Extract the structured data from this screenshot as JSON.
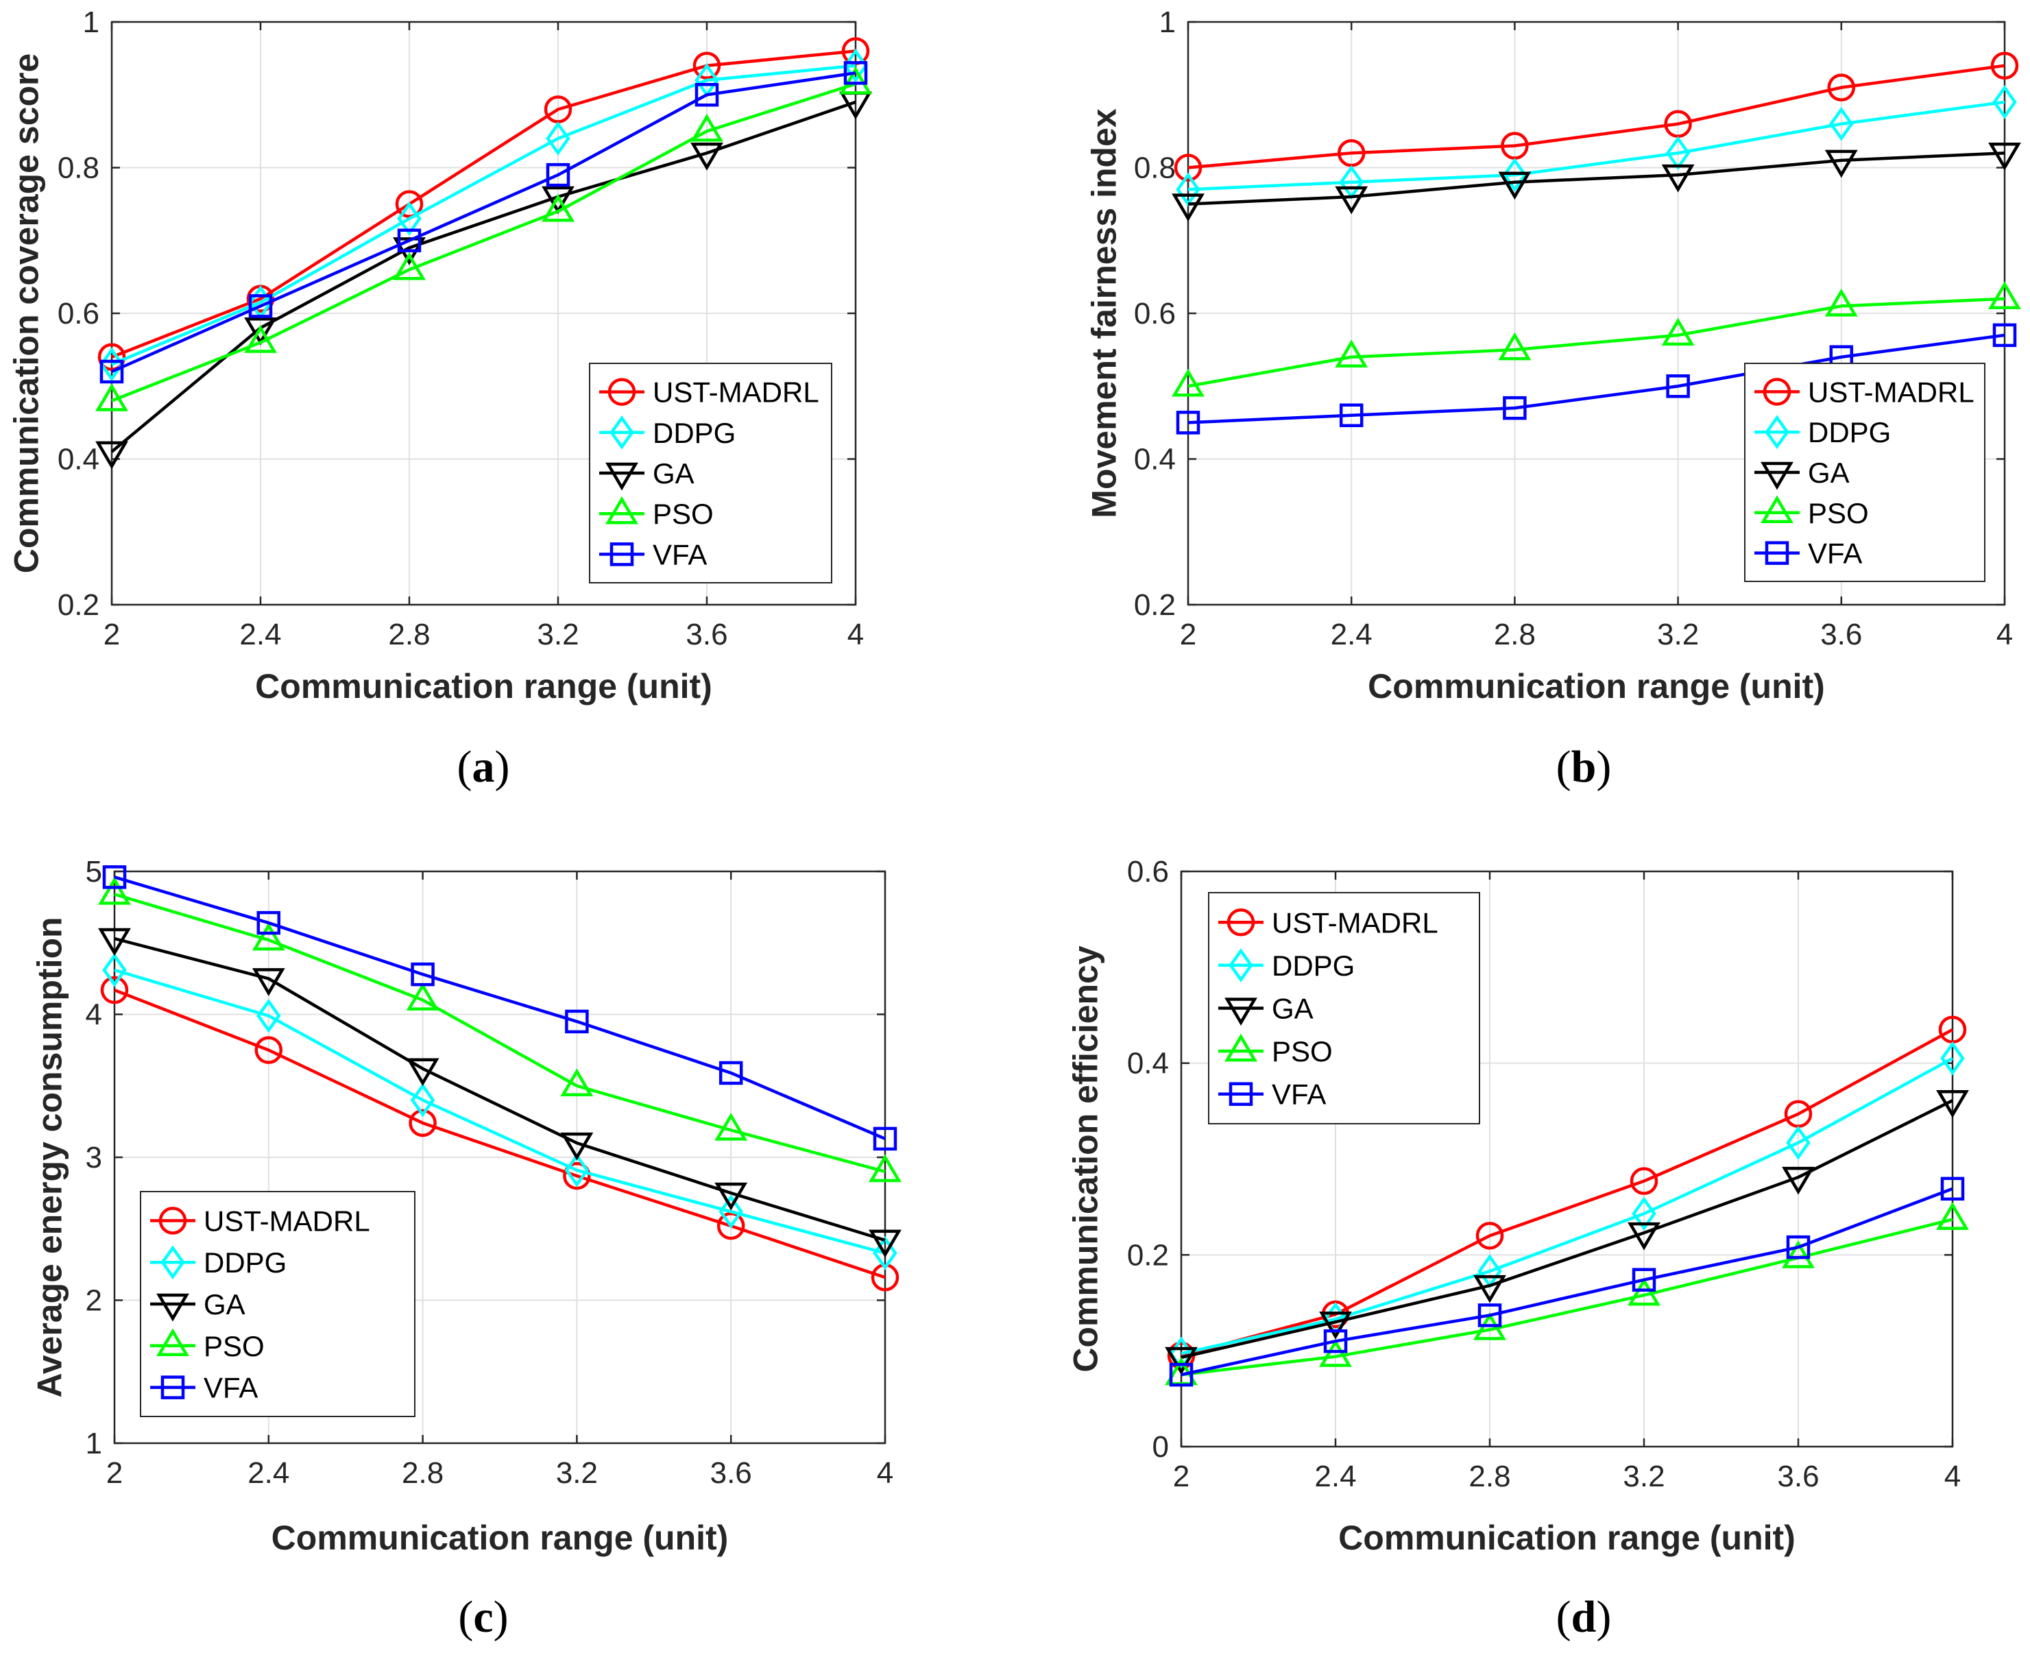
{
  "colors": {
    "UST-MADRL": "#ff0000",
    "DDPG": "#00ffff",
    "GA": "#000000",
    "PSO": "#00ff00",
    "VFA": "#0000ff"
  },
  "chart_data": [
    {
      "type": "line",
      "panel": "a",
      "caption": {
        "open": "(",
        "letter": "a",
        "close": ")"
      },
      "xlabel": "Communication range (unit)",
      "ylabel": "Communication coverage score",
      "x": [
        2,
        2.4,
        2.8,
        3.2,
        3.6,
        4
      ],
      "xticks": [
        "2",
        "2.4",
        "2.8",
        "3.2",
        "3.6",
        "4"
      ],
      "xlim": [
        2,
        4
      ],
      "ylim": [
        0.2,
        1
      ],
      "yticks": [
        0.2,
        0.4,
        0.6,
        0.8,
        1
      ],
      "ytick_labels": [
        "0.2",
        "0.4",
        "0.6",
        "0.8",
        "1"
      ],
      "grid": true,
      "legend_position": "bottom-right",
      "series": [
        {
          "name": "UST-MADRL",
          "marker": "circle",
          "values": [
            0.54,
            0.62,
            0.75,
            0.88,
            0.94,
            0.96
          ]
        },
        {
          "name": "DDPG",
          "marker": "diamond",
          "values": [
            0.53,
            0.615,
            0.73,
            0.84,
            0.92,
            0.94
          ]
        },
        {
          "name": "GA",
          "marker": "triangle-down",
          "values": [
            0.41,
            0.58,
            0.69,
            0.76,
            0.82,
            0.89
          ]
        },
        {
          "name": "PSO",
          "marker": "triangle-up",
          "values": [
            0.48,
            0.56,
            0.66,
            0.74,
            0.85,
            0.915
          ]
        },
        {
          "name": "VFA",
          "marker": "square",
          "values": [
            0.52,
            0.61,
            0.7,
            0.79,
            0.9,
            0.93
          ]
        }
      ]
    },
    {
      "type": "line",
      "panel": "b",
      "caption": {
        "open": "(",
        "letter": "b",
        "close": ")"
      },
      "xlabel": "Communication range (unit)",
      "ylabel": "Movement fairness index",
      "x": [
        2,
        2.4,
        2.8,
        3.2,
        3.6,
        4
      ],
      "xticks": [
        "2",
        "2.4",
        "2.8",
        "3.2",
        "3.6",
        "4"
      ],
      "xlim": [
        2,
        4
      ],
      "ylim": [
        0.2,
        1
      ],
      "yticks": [
        0.2,
        0.4,
        0.6,
        0.8,
        1
      ],
      "ytick_labels": [
        "0.2",
        "0.4",
        "0.6",
        "0.8",
        "1"
      ],
      "grid": true,
      "legend_position": "bottom-right",
      "series": [
        {
          "name": "UST-MADRL",
          "marker": "circle",
          "values": [
            0.8,
            0.82,
            0.83,
            0.86,
            0.91,
            0.94
          ]
        },
        {
          "name": "DDPG",
          "marker": "diamond",
          "values": [
            0.77,
            0.78,
            0.79,
            0.82,
            0.86,
            0.89
          ]
        },
        {
          "name": "GA",
          "marker": "triangle-down",
          "values": [
            0.75,
            0.76,
            0.78,
            0.79,
            0.81,
            0.82
          ]
        },
        {
          "name": "PSO",
          "marker": "triangle-up",
          "values": [
            0.5,
            0.54,
            0.55,
            0.57,
            0.61,
            0.62
          ]
        },
        {
          "name": "VFA",
          "marker": "square",
          "values": [
            0.45,
            0.46,
            0.47,
            0.5,
            0.54,
            0.57
          ]
        }
      ]
    },
    {
      "type": "line",
      "panel": "c",
      "caption": {
        "open": "(",
        "letter": "c",
        "close": ")"
      },
      "xlabel": "Communication range (unit)",
      "ylabel": "Average energy consumption",
      "x": [
        2,
        2.4,
        2.8,
        3.2,
        3.6,
        4
      ],
      "xticks": [
        "2",
        "2.4",
        "2.8",
        "3.2",
        "3.6",
        "4"
      ],
      "xlim": [
        2,
        4
      ],
      "ylim": [
        1,
        5
      ],
      "yticks": [
        1,
        2,
        3,
        4,
        5
      ],
      "ytick_labels": [
        "1",
        "2",
        "3",
        "4",
        "5"
      ],
      "grid": true,
      "legend_position": "bottom-left",
      "series": [
        {
          "name": "UST-MADRL",
          "marker": "circle",
          "values": [
            4.17,
            3.75,
            3.24,
            2.87,
            2.52,
            2.16
          ]
        },
        {
          "name": "DDPG",
          "marker": "diamond",
          "values": [
            4.31,
            3.99,
            3.4,
            2.91,
            2.62,
            2.33
          ]
        },
        {
          "name": "GA",
          "marker": "triangle-down",
          "values": [
            4.53,
            4.25,
            3.62,
            3.1,
            2.75,
            2.42
          ]
        },
        {
          "name": "PSO",
          "marker": "triangle-up",
          "values": [
            4.84,
            4.52,
            4.1,
            3.5,
            3.19,
            2.9
          ]
        },
        {
          "name": "VFA",
          "marker": "square",
          "values": [
            4.96,
            4.64,
            4.28,
            3.95,
            3.59,
            3.13
          ]
        }
      ]
    },
    {
      "type": "line",
      "panel": "d",
      "caption": {
        "open": "(",
        "letter": "d",
        "close": ")"
      },
      "xlabel": "Communication range (unit)",
      "ylabel": "Communication efficiency",
      "x": [
        2,
        2.4,
        2.8,
        3.2,
        3.6,
        4
      ],
      "xticks": [
        "2",
        "2.4",
        "2.8",
        "3.2",
        "3.6",
        "4"
      ],
      "xlim": [
        2,
        4
      ],
      "ylim": [
        0,
        0.6
      ],
      "yticks": [
        0,
        0.2,
        0.4,
        0.6
      ],
      "ytick_labels": [
        "0",
        "0.2",
        "0.4",
        "0.6"
      ],
      "grid": true,
      "legend_position": "top-left",
      "series": [
        {
          "name": "UST-MADRL",
          "marker": "circle",
          "values": [
            0.095,
            0.138,
            0.22,
            0.277,
            0.347,
            0.435
          ]
        },
        {
          "name": "DDPG",
          "marker": "diamond",
          "values": [
            0.097,
            0.133,
            0.183,
            0.243,
            0.317,
            0.405
          ]
        },
        {
          "name": "GA",
          "marker": "triangle-down",
          "values": [
            0.093,
            0.13,
            0.168,
            0.223,
            0.281,
            0.361
          ]
        },
        {
          "name": "PSO",
          "marker": "triangle-up",
          "values": [
            0.075,
            0.094,
            0.122,
            0.158,
            0.197,
            0.237
          ]
        },
        {
          "name": "VFA",
          "marker": "square",
          "values": [
            0.075,
            0.11,
            0.137,
            0.174,
            0.208,
            0.269
          ]
        }
      ]
    }
  ]
}
